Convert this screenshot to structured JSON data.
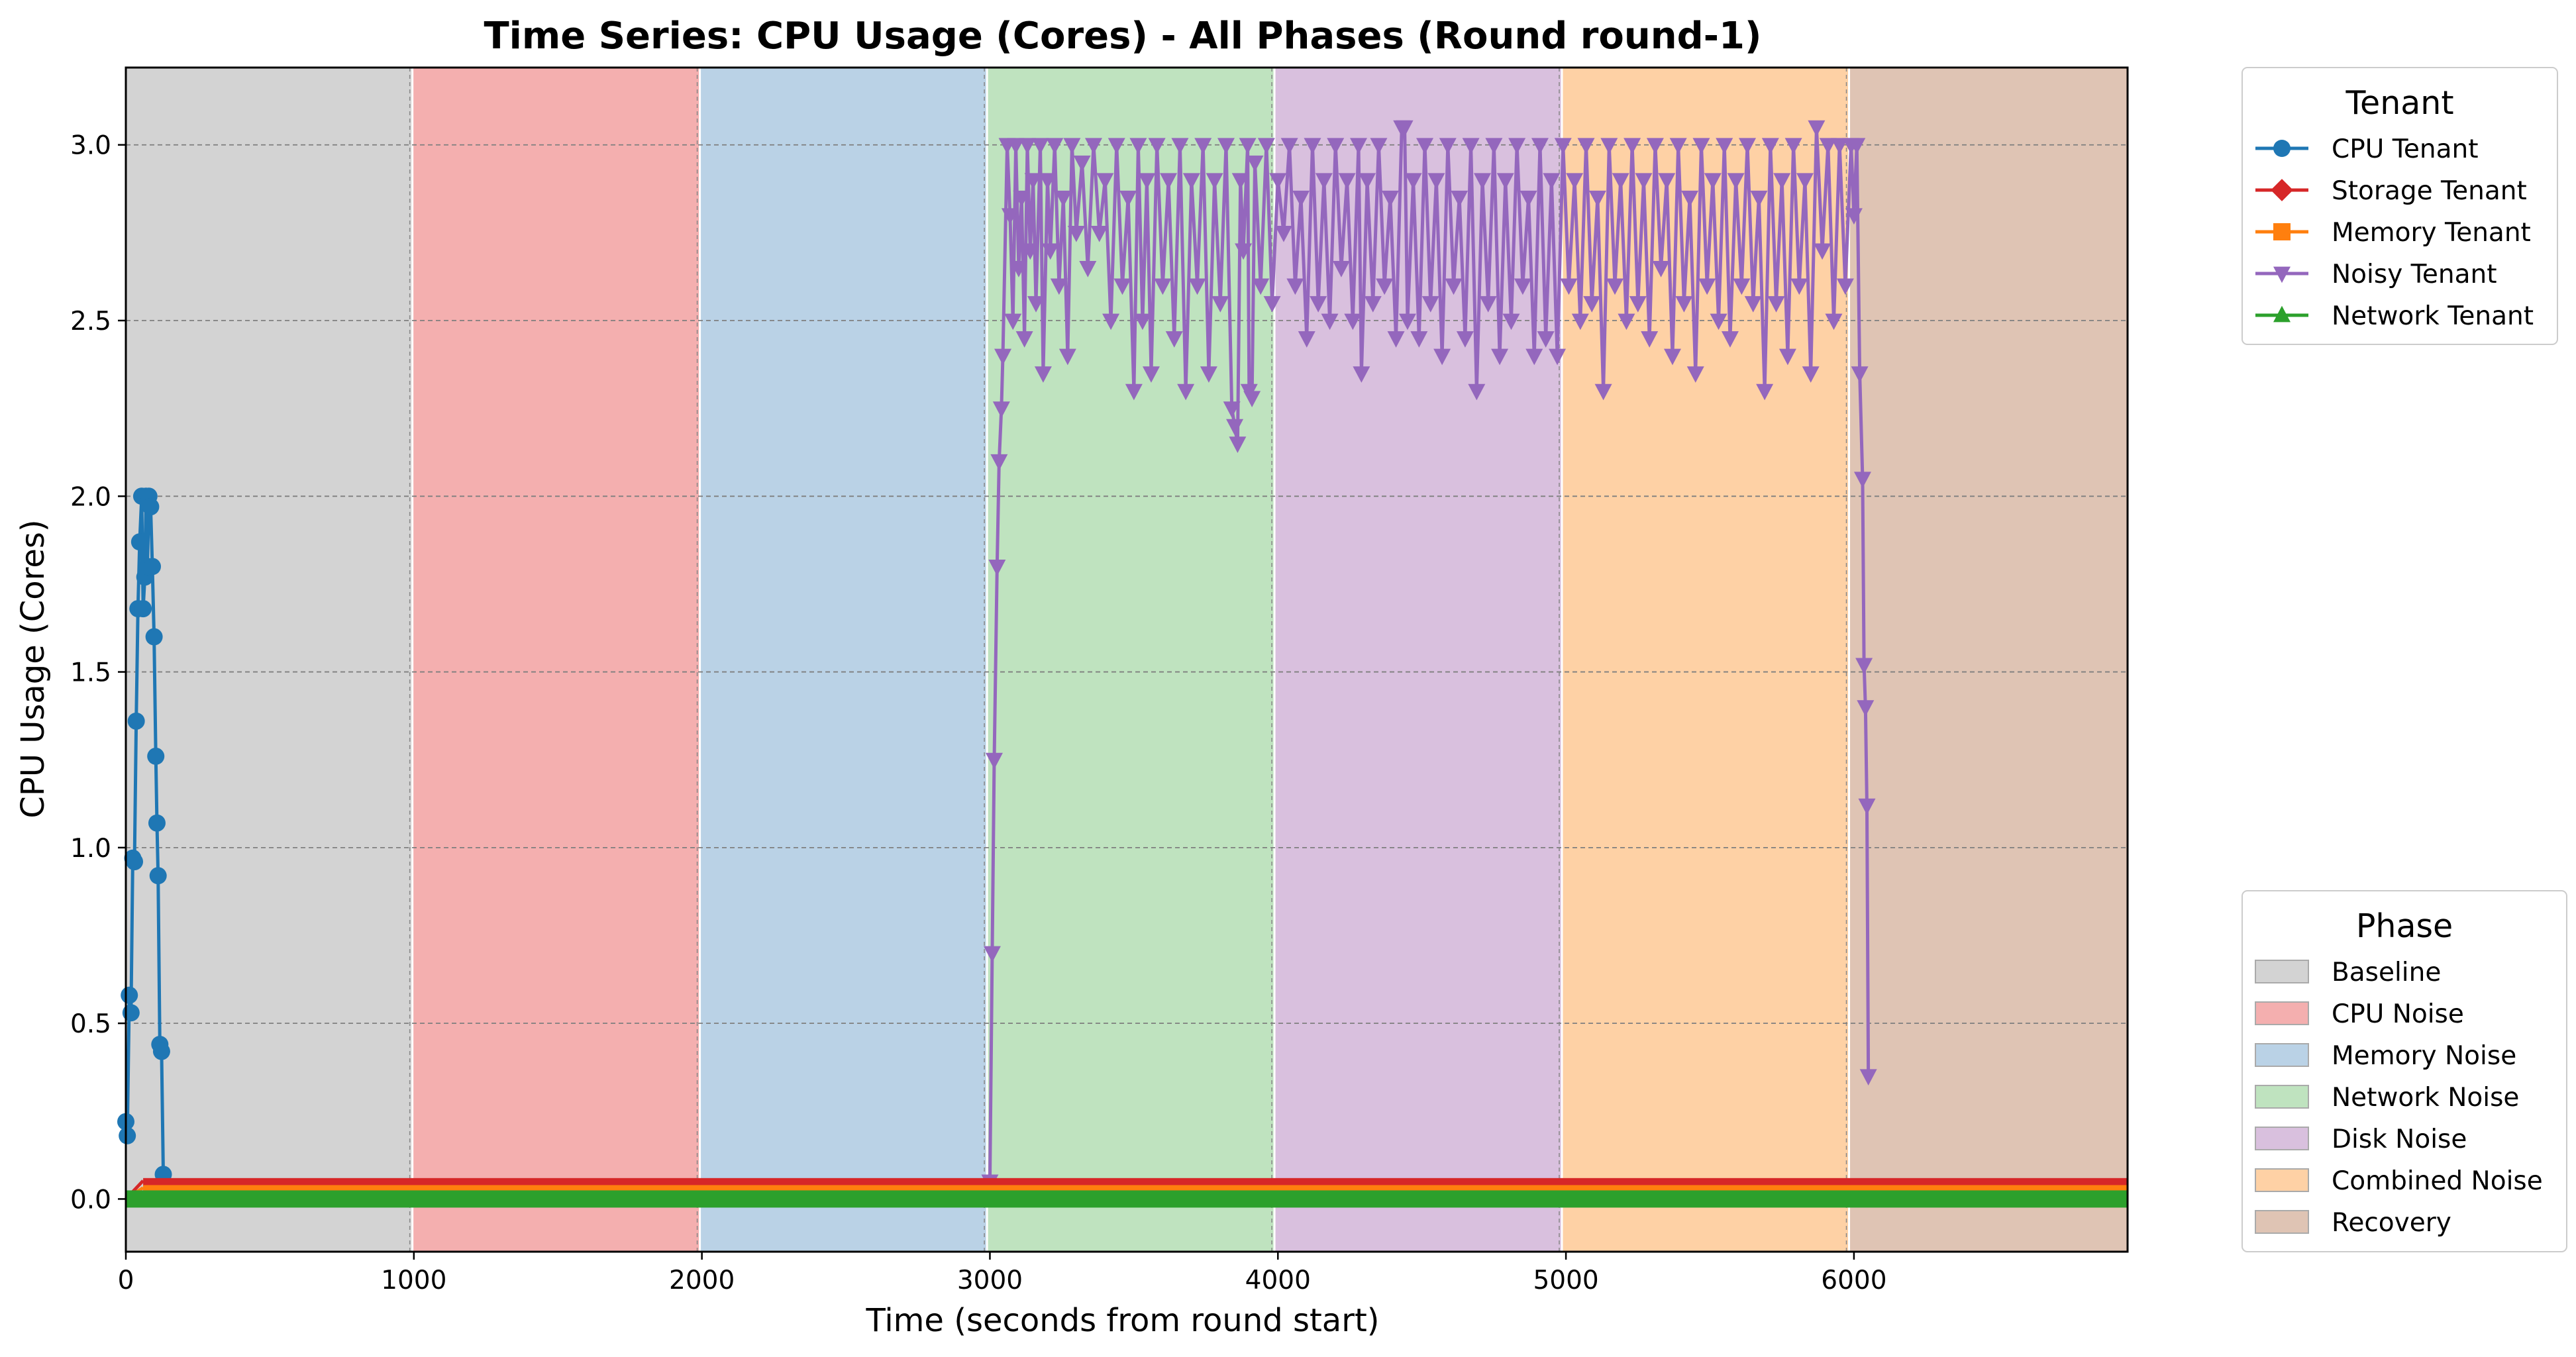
{
  "chart_data": {
    "type": "line",
    "title": "Time Series: CPU Usage (Cores) - All Phases (Round round-1)",
    "xlabel": "Time (seconds from round start)",
    "ylabel": "CPU Usage (Cores)",
    "xlim": [
      0,
      6950
    ],
    "ylim": [
      -0.15,
      3.22
    ],
    "x_ticks": [
      0,
      1000,
      2000,
      3000,
      4000,
      5000,
      6000
    ],
    "y_ticks": [
      0.0,
      0.5,
      1.0,
      1.5,
      2.0,
      2.5,
      3.0
    ],
    "x_tick_labels": [
      "0",
      "1000",
      "2000",
      "3000",
      "4000",
      "5000",
      "6000"
    ],
    "y_tick_labels": [
      "0.0",
      "0.5",
      "1.0",
      "1.5",
      "2.0",
      "2.5",
      "3.0"
    ],
    "grid": "horizontal dashed",
    "legends": {
      "tenant": {
        "title": "Tenant",
        "placement": "upper right outside"
      },
      "phase": {
        "title": "Phase",
        "placement": "lower right outside"
      }
    },
    "phases": [
      {
        "name": "Baseline",
        "start": 0,
        "end": 995,
        "color": "#d3d3d3"
      },
      {
        "name": "CPU Noise",
        "start": 995,
        "end": 1993,
        "color": "#f4afaf"
      },
      {
        "name": "Memory Noise",
        "start": 1993,
        "end": 2990,
        "color": "#bad2e6"
      },
      {
        "name": "Network Noise",
        "start": 2990,
        "end": 3988,
        "color": "#bfe3bf"
      },
      {
        "name": "Disk Noise",
        "start": 3988,
        "end": 4986,
        "color": "#d9c0de"
      },
      {
        "name": "Combined Noise",
        "start": 4986,
        "end": 5983,
        "color": "#fed1a5"
      },
      {
        "name": "Recovery",
        "start": 5983,
        "end": 6950,
        "color": "#dfc4b4"
      }
    ],
    "series": [
      {
        "name": "CPU Tenant",
        "color": "#1f77b4",
        "marker": "circle",
        "points": [
          [
            0,
            0.22
          ],
          [
            5,
            0.18
          ],
          [
            12,
            0.58
          ],
          [
            18,
            0.53
          ],
          [
            24,
            0.97
          ],
          [
            30,
            0.96
          ],
          [
            36,
            1.36
          ],
          [
            42,
            1.68
          ],
          [
            48,
            1.87
          ],
          [
            55,
            2.0
          ],
          [
            60,
            1.68
          ],
          [
            66,
            1.77
          ],
          [
            70,
            2.0
          ],
          [
            75,
            1.8
          ],
          [
            80,
            2.0
          ],
          [
            86,
            1.97
          ],
          [
            92,
            1.8
          ],
          [
            98,
            1.6
          ],
          [
            104,
            1.26
          ],
          [
            108,
            1.07
          ],
          [
            112,
            0.92
          ],
          [
            118,
            0.44
          ],
          [
            124,
            0.42
          ],
          [
            130,
            0.07
          ]
        ]
      },
      {
        "name": "Storage Tenant",
        "color": "#d62728",
        "marker": "diamond",
        "points": [
          [
            0,
            0.0
          ],
          [
            60,
            0.052
          ],
          [
            1000,
            0.052
          ],
          [
            2000,
            0.052
          ],
          [
            3000,
            0.052
          ],
          [
            4000,
            0.052
          ],
          [
            5000,
            0.052
          ],
          [
            6000,
            0.052
          ],
          [
            6950,
            0.052
          ]
        ]
      },
      {
        "name": "Memory Tenant",
        "color": "#ff7f0e",
        "marker": "square",
        "points": [
          [
            0,
            0.0
          ],
          [
            60,
            0.032
          ],
          [
            1000,
            0.032
          ],
          [
            2000,
            0.032
          ],
          [
            3000,
            0.032
          ],
          [
            4000,
            0.032
          ],
          [
            5000,
            0.032
          ],
          [
            6000,
            0.032
          ],
          [
            6950,
            0.032
          ]
        ]
      },
      {
        "name": "Noisy Tenant",
        "color": "#9467bd",
        "marker": "triangle-down",
        "points": [
          [
            3000,
            0.05
          ],
          [
            3008,
            0.7
          ],
          [
            3015,
            1.25
          ],
          [
            3025,
            1.8
          ],
          [
            3032,
            2.1
          ],
          [
            3040,
            2.25
          ],
          [
            3045,
            2.4
          ],
          [
            3060,
            3.0
          ],
          [
            3070,
            2.8
          ],
          [
            3080,
            2.5
          ],
          [
            3090,
            3.0
          ],
          [
            3100,
            2.65
          ],
          [
            3110,
            2.85
          ],
          [
            3120,
            2.45
          ],
          [
            3130,
            3.0
          ],
          [
            3140,
            2.7
          ],
          [
            3150,
            2.9
          ],
          [
            3160,
            2.55
          ],
          [
            3175,
            3.0
          ],
          [
            3185,
            2.35
          ],
          [
            3200,
            2.9
          ],
          [
            3210,
            2.7
          ],
          [
            3225,
            3.0
          ],
          [
            3240,
            2.6
          ],
          [
            3255,
            2.85
          ],
          [
            3270,
            2.4
          ],
          [
            3285,
            3.0
          ],
          [
            3300,
            2.75
          ],
          [
            3320,
            2.95
          ],
          [
            3340,
            2.65
          ],
          [
            3360,
            3.0
          ],
          [
            3380,
            2.75
          ],
          [
            3400,
            2.9
          ],
          [
            3420,
            2.5
          ],
          [
            3440,
            3.0
          ],
          [
            3460,
            2.6
          ],
          [
            3480,
            2.85
          ],
          [
            3500,
            2.3
          ],
          [
            3515,
            3.0
          ],
          [
            3530,
            2.5
          ],
          [
            3545,
            2.9
          ],
          [
            3560,
            2.35
          ],
          [
            3580,
            3.0
          ],
          [
            3600,
            2.6
          ],
          [
            3620,
            2.9
          ],
          [
            3640,
            2.45
          ],
          [
            3660,
            3.0
          ],
          [
            3680,
            2.3
          ],
          [
            3700,
            2.9
          ],
          [
            3720,
            2.6
          ],
          [
            3740,
            3.0
          ],
          [
            3760,
            2.35
          ],
          [
            3780,
            2.9
          ],
          [
            3800,
            2.55
          ],
          [
            3820,
            3.0
          ],
          [
            3840,
            2.25
          ],
          [
            3850,
            2.2
          ],
          [
            3860,
            2.15
          ],
          [
            3870,
            2.9
          ],
          [
            3880,
            2.7
          ],
          [
            3895,
            3.0
          ],
          [
            3900,
            2.3
          ],
          [
            3910,
            2.28
          ],
          [
            3920,
            2.95
          ],
          [
            3940,
            2.6
          ],
          [
            3960,
            3.0
          ],
          [
            3980,
            2.55
          ],
          [
            4000,
            2.9
          ],
          [
            4020,
            2.75
          ],
          [
            4040,
            3.0
          ],
          [
            4060,
            2.6
          ],
          [
            4080,
            2.85
          ],
          [
            4100,
            2.45
          ],
          [
            4120,
            3.0
          ],
          [
            4140,
            2.55
          ],
          [
            4160,
            2.9
          ],
          [
            4180,
            2.5
          ],
          [
            4200,
            3.0
          ],
          [
            4220,
            2.65
          ],
          [
            4240,
            2.9
          ],
          [
            4260,
            2.5
          ],
          [
            4280,
            3.0
          ],
          [
            4290,
            2.35
          ],
          [
            4310,
            2.9
          ],
          [
            4330,
            2.55
          ],
          [
            4350,
            3.0
          ],
          [
            4370,
            2.6
          ],
          [
            4390,
            2.85
          ],
          [
            4410,
            2.45
          ],
          [
            4430,
            3.05
          ],
          [
            4440,
            3.05
          ],
          [
            4450,
            2.5
          ],
          [
            4470,
            2.9
          ],
          [
            4490,
            2.45
          ],
          [
            4510,
            3.0
          ],
          [
            4530,
            2.55
          ],
          [
            4550,
            2.9
          ],
          [
            4570,
            2.4
          ],
          [
            4590,
            3.0
          ],
          [
            4610,
            2.6
          ],
          [
            4630,
            2.85
          ],
          [
            4650,
            2.45
          ],
          [
            4670,
            3.0
          ],
          [
            4690,
            2.3
          ],
          [
            4710,
            2.9
          ],
          [
            4730,
            2.55
          ],
          [
            4750,
            3.0
          ],
          [
            4770,
            2.4
          ],
          [
            4790,
            2.9
          ],
          [
            4810,
            2.5
          ],
          [
            4830,
            3.0
          ],
          [
            4850,
            2.6
          ],
          [
            4870,
            2.85
          ],
          [
            4890,
            2.4
          ],
          [
            4910,
            3.0
          ],
          [
            4930,
            2.45
          ],
          [
            4950,
            2.9
          ],
          [
            4970,
            2.4
          ],
          [
            4990,
            3.0
          ],
          [
            5010,
            2.6
          ],
          [
            5030,
            2.9
          ],
          [
            5050,
            2.5
          ],
          [
            5070,
            3.0
          ],
          [
            5090,
            2.55
          ],
          [
            5110,
            2.85
          ],
          [
            5130,
            2.3
          ],
          [
            5150,
            3.0
          ],
          [
            5170,
            2.6
          ],
          [
            5190,
            2.9
          ],
          [
            5210,
            2.5
          ],
          [
            5230,
            3.0
          ],
          [
            5250,
            2.55
          ],
          [
            5270,
            2.9
          ],
          [
            5290,
            2.45
          ],
          [
            5310,
            3.0
          ],
          [
            5330,
            2.65
          ],
          [
            5350,
            2.9
          ],
          [
            5370,
            2.4
          ],
          [
            5390,
            3.0
          ],
          [
            5410,
            2.55
          ],
          [
            5430,
            2.85
          ],
          [
            5450,
            2.35
          ],
          [
            5470,
            3.0
          ],
          [
            5490,
            2.6
          ],
          [
            5510,
            2.9
          ],
          [
            5530,
            2.5
          ],
          [
            5550,
            3.0
          ],
          [
            5570,
            2.45
          ],
          [
            5590,
            2.9
          ],
          [
            5610,
            2.6
          ],
          [
            5630,
            3.0
          ],
          [
            5650,
            2.55
          ],
          [
            5670,
            2.85
          ],
          [
            5690,
            2.3
          ],
          [
            5710,
            3.0
          ],
          [
            5730,
            2.55
          ],
          [
            5750,
            2.9
          ],
          [
            5770,
            2.4
          ],
          [
            5790,
            3.0
          ],
          [
            5810,
            2.6
          ],
          [
            5830,
            2.9
          ],
          [
            5850,
            2.35
          ],
          [
            5870,
            3.05
          ],
          [
            5890,
            2.7
          ],
          [
            5910,
            3.0
          ],
          [
            5930,
            2.5
          ],
          [
            5950,
            3.0
          ],
          [
            5970,
            2.6
          ],
          [
            5990,
            3.0
          ],
          [
            6000,
            2.8
          ],
          [
            6010,
            3.0
          ],
          [
            6020,
            2.35
          ],
          [
            6030,
            2.05
          ],
          [
            6035,
            1.52
          ],
          [
            6040,
            1.4
          ],
          [
            6045,
            1.12
          ],
          [
            6050,
            0.35
          ]
        ]
      },
      {
        "name": "Network Tenant",
        "color": "#2ca02c",
        "marker": "triangle-up",
        "points": [
          [
            0,
            0.0
          ],
          [
            6950,
            0.0
          ]
        ]
      }
    ]
  }
}
